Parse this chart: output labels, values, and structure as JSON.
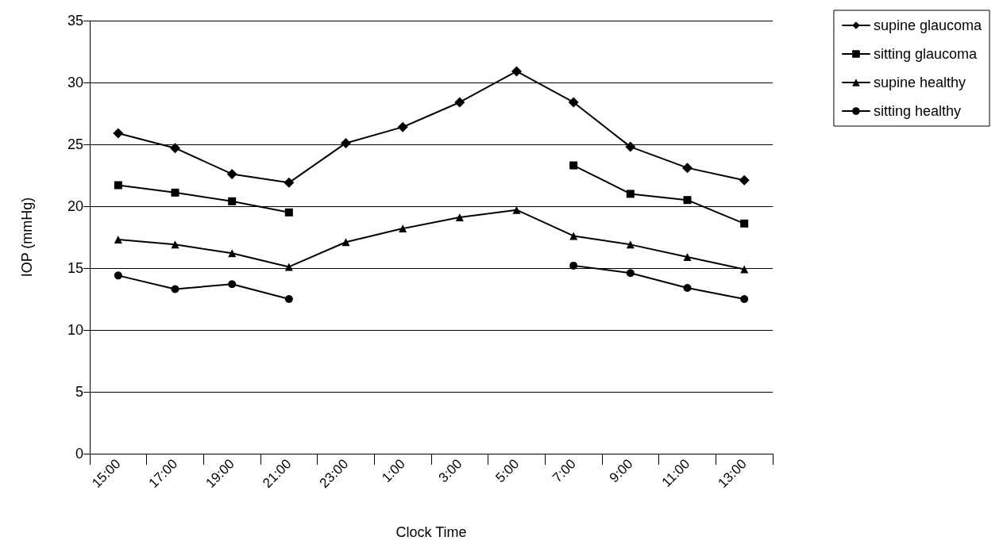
{
  "chart_data": {
    "type": "line",
    "xlabel": "Clock Time",
    "ylabel": "IOP (mmHg)",
    "categories": [
      "15:00",
      "17:00",
      "19:00",
      "21:00",
      "23:00",
      "1:00",
      "3:00",
      "5:00",
      "7:00",
      "9:00",
      "11:00",
      "13:00"
    ],
    "ylim": [
      0,
      35
    ],
    "yticks": [
      0,
      5,
      10,
      15,
      20,
      25,
      30,
      35
    ],
    "grid": "y",
    "legend": "top right",
    "series": [
      {
        "name": "supine glaucoma",
        "color": "#000000",
        "marker": "diamond",
        "values": [
          25.9,
          24.7,
          22.6,
          21.9,
          25.1,
          26.4,
          28.4,
          30.9,
          28.4,
          24.8,
          23.1,
          22.1
        ]
      },
      {
        "name": "sitting glaucoma",
        "color": "#000000",
        "marker": "square",
        "values": [
          21.7,
          21.1,
          20.4,
          19.5,
          null,
          null,
          null,
          null,
          23.3,
          21.0,
          20.5,
          18.6
        ]
      },
      {
        "name": "supine healthy",
        "color": "#000000",
        "marker": "triangle",
        "values": [
          17.3,
          16.9,
          16.2,
          15.1,
          17.1,
          18.2,
          19.1,
          19.7,
          17.6,
          16.9,
          15.9,
          14.9
        ]
      },
      {
        "name": "sitting healthy",
        "color": "#000000",
        "marker": "circle",
        "values": [
          14.4,
          13.3,
          13.7,
          12.5,
          null,
          null,
          null,
          null,
          15.2,
          14.6,
          13.4,
          12.5
        ]
      }
    ]
  }
}
